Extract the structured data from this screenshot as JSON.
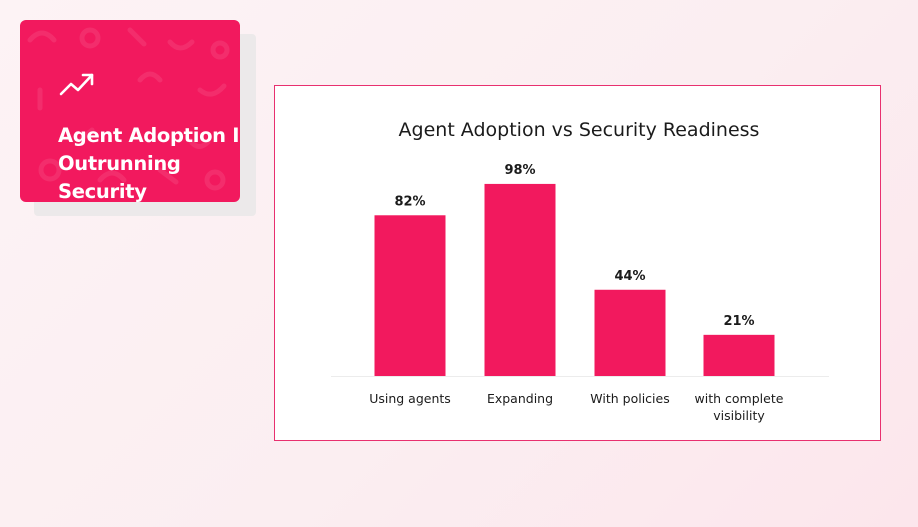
{
  "card": {
    "title": "Agent Adoption Is Outrunning Security",
    "background": "#f2195e",
    "icon": "trending-up-icon"
  },
  "chart_data": {
    "type": "bar",
    "title": "Agent Adoption vs Security Readiness",
    "categories": [
      "Using agents",
      "Expanding",
      "With policies",
      "with complete visibility"
    ],
    "values": [
      82,
      98,
      44,
      21
    ],
    "value_labels": [
      "82%",
      "98%",
      "44%",
      "21%"
    ],
    "unit": "%",
    "ylim": [
      0,
      100
    ],
    "grid": false,
    "legend": "none",
    "bar_color": "#f2195e"
  }
}
